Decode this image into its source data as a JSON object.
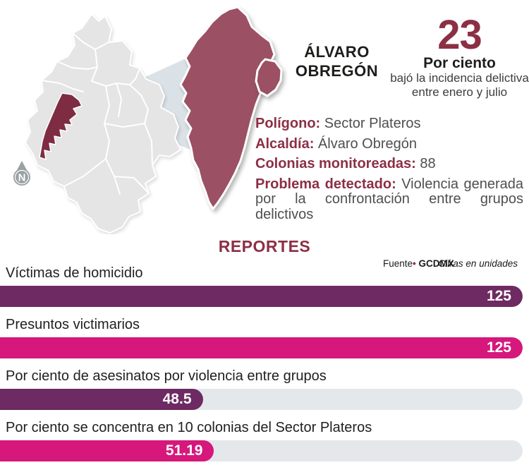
{
  "colors": {
    "maroon_accent": "#8c2f45",
    "map_highlight": "#7e2c42",
    "enlarged_shape": "#9b5063",
    "beam": "#b9c7d1",
    "bar_purple": "#6e2a62",
    "bar_pink": "#d6177c",
    "bar_track": "#e4e8ea",
    "map_gray": "#e4e5e4"
  },
  "header": {
    "region_line1": "ÁLVARO",
    "region_line2": "OBREGÓN",
    "stat_number": "23",
    "stat_label": "Por ciento",
    "stat_desc_line1": "bajó la incidencia delictiva",
    "stat_desc_line2": "entre enero y julio"
  },
  "compass": {
    "letter": "N"
  },
  "details": [
    {
      "label": "Polígono:",
      "value": "Sector Plateros"
    },
    {
      "label": "Alcaldía:",
      "value": "Álvaro Obregón"
    },
    {
      "label": "Colonias monitoreadas:",
      "value": "88"
    },
    {
      "label": "Problema detectado:",
      "value": "Violencia generada por la confrontación entre grupos delictivos"
    }
  ],
  "reports": {
    "title": "REPORTES",
    "source_label": "Fuente",
    "source_bullet": "•",
    "source_value": "GCDMX",
    "units_note": "Cifras en unidades"
  },
  "chart_data": {
    "type": "bar",
    "orientation": "horizontal",
    "title": "REPORTES",
    "source": "GCDMX",
    "units": "Cifras en unidades",
    "scale_max": 125,
    "categories": [
      "Víctimas de homicidio",
      "Presuntos victimarios",
      "Por ciento de asesinatos por violencia entre grupos",
      "Por ciento se concentra en 10 colonias del Sector Plateros"
    ],
    "values": [
      125,
      125,
      48.5,
      51.19
    ],
    "bars": [
      {
        "label": "Víctimas de homicidio",
        "value": "125",
        "numeric": 125,
        "color": "#6e2a62"
      },
      {
        "label": "Presuntos victimarios",
        "value": "125",
        "numeric": 125,
        "color": "#d6177c"
      },
      {
        "label": "Por ciento de asesinatos por violencia entre grupos",
        "value": "48.5",
        "numeric": 48.5,
        "color": "#6e2a62"
      },
      {
        "label": "Por ciento se concentra en 10 colonias del Sector Plateros",
        "value": "51.19",
        "numeric": 51.19,
        "color": "#d6177c"
      }
    ]
  }
}
